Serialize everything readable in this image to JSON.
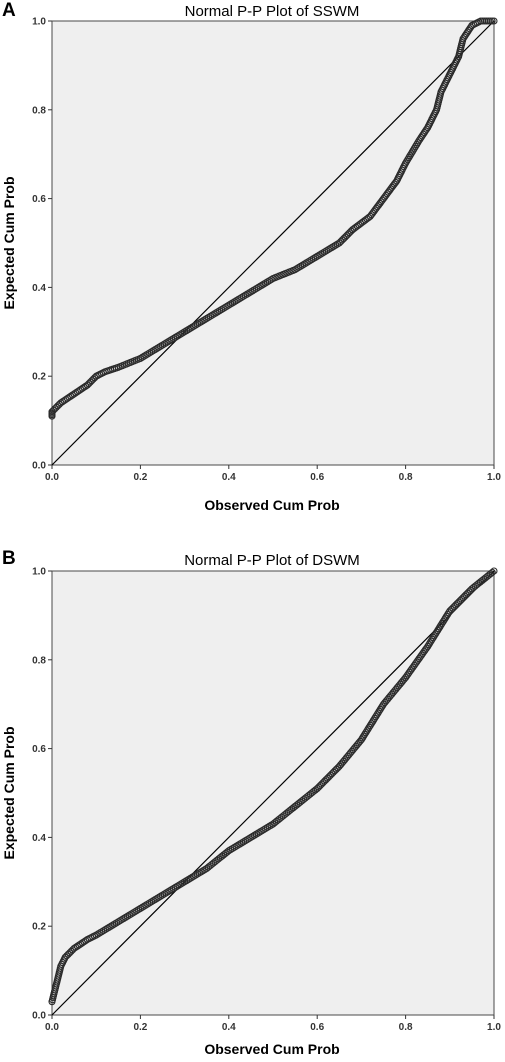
{
  "panels": [
    {
      "letter": "A",
      "chart_data": {
        "type": "scatter",
        "title": "Normal P-P Plot of SSWM",
        "xlabel": "Observed Cum Prob",
        "ylabel": "Expected Cum Prob",
        "xlim": [
          0,
          1
        ],
        "ylim": [
          0,
          1
        ],
        "xticks": [
          "0.0",
          "0.2",
          "0.4",
          "0.6",
          "0.8",
          "1.0"
        ],
        "yticks": [
          "0.0",
          "0.2",
          "0.4",
          "0.6",
          "0.8",
          "1.0"
        ],
        "reference_line": [
          [
            0,
            0
          ],
          [
            1,
            1
          ]
        ],
        "grid": false,
        "points": {
          "x": [
            0.0,
            0.0,
            0.01,
            0.02,
            0.05,
            0.08,
            0.1,
            0.12,
            0.15,
            0.2,
            0.25,
            0.3,
            0.35,
            0.4,
            0.45,
            0.5,
            0.55,
            0.6,
            0.65,
            0.68,
            0.72,
            0.75,
            0.78,
            0.8,
            0.83,
            0.85,
            0.87,
            0.88,
            0.9,
            0.92,
            0.93,
            0.95,
            0.97,
            1.0
          ],
          "y": [
            0.11,
            0.12,
            0.13,
            0.14,
            0.16,
            0.18,
            0.2,
            0.21,
            0.22,
            0.24,
            0.27,
            0.3,
            0.33,
            0.36,
            0.39,
            0.42,
            0.44,
            0.47,
            0.5,
            0.53,
            0.56,
            0.6,
            0.64,
            0.68,
            0.73,
            0.76,
            0.8,
            0.84,
            0.88,
            0.92,
            0.96,
            0.99,
            1.0,
            1.0
          ]
        }
      }
    },
    {
      "letter": "B",
      "chart_data": {
        "type": "scatter",
        "title": "Normal P-P Plot of DSWM",
        "xlabel": "Observed Cum Prob",
        "ylabel": "Expected Cum Prob",
        "xlim": [
          0,
          1
        ],
        "ylim": [
          0,
          1
        ],
        "xticks": [
          "0.0",
          "0.2",
          "0.4",
          "0.6",
          "0.8",
          "1.0"
        ],
        "yticks": [
          "0.0",
          "0.2",
          "0.4",
          "0.6",
          "0.8",
          "1.0"
        ],
        "reference_line": [
          [
            0,
            0
          ],
          [
            1,
            1
          ]
        ],
        "grid": false,
        "points": {
          "x": [
            0.0,
            0.01,
            0.02,
            0.03,
            0.05,
            0.08,
            0.1,
            0.15,
            0.2,
            0.25,
            0.3,
            0.35,
            0.4,
            0.45,
            0.5,
            0.55,
            0.6,
            0.65,
            0.7,
            0.75,
            0.8,
            0.85,
            0.9,
            0.95,
            1.0
          ],
          "y": [
            0.03,
            0.07,
            0.11,
            0.13,
            0.15,
            0.17,
            0.18,
            0.21,
            0.24,
            0.27,
            0.3,
            0.33,
            0.37,
            0.4,
            0.43,
            0.47,
            0.51,
            0.56,
            0.62,
            0.7,
            0.76,
            0.83,
            0.91,
            0.96,
            1.0
          ]
        }
      }
    }
  ]
}
